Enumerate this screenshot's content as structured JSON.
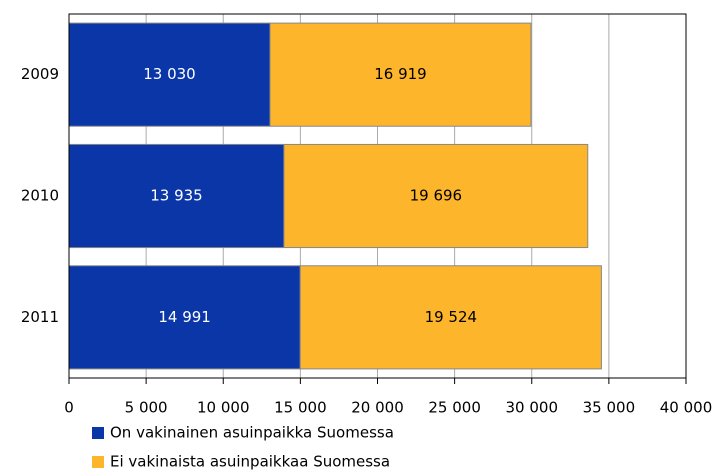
{
  "chart_data": {
    "type": "stacked-barh",
    "categories": [
      "2009",
      "2010",
      "2011"
    ],
    "series": [
      {
        "name": "On vakinainen asuinpaikka Suomessa",
        "color": "#0a36a8",
        "values": [
          13030,
          13935,
          14991
        ],
        "value_labels": [
          "13 030",
          "13 935",
          "14 991"
        ]
      },
      {
        "name": "Ei vakinaista asuinpaikkaa Suomessa",
        "color": "#fdb52b",
        "values": [
          16919,
          19696,
          19524
        ],
        "value_labels": [
          "16 919",
          "19 696",
          "19 524"
        ]
      }
    ],
    "xlim": [
      0,
      40000
    ],
    "xticks": [
      0,
      {
        "value": 5000,
        "label": "5 000"
      },
      {
        "value": 10000,
        "label": "10 000"
      },
      {
        "value": 15000,
        "label": "15 000"
      },
      {
        "value": 20000,
        "label": "20 000"
      },
      {
        "value": 25000,
        "label": "25 000"
      },
      {
        "value": 30000,
        "label": "30 000"
      },
      {
        "value": 35000,
        "label": "35 000"
      },
      {
        "value": 40000,
        "label": "40 000"
      }
    ],
    "grid": true,
    "legend": "bottom"
  }
}
